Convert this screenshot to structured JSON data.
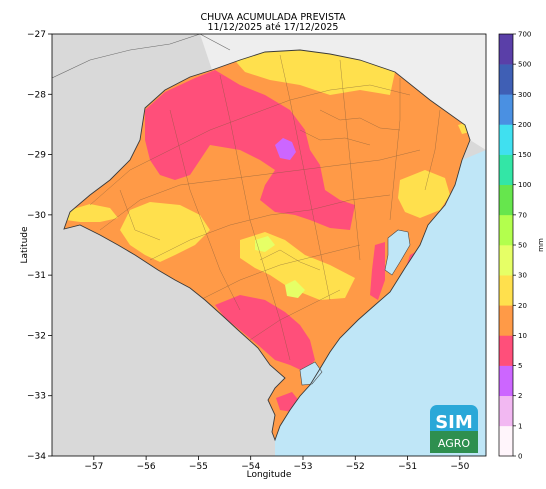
{
  "title_line1": "CHUVA ACUMULADA PREVISTA",
  "title_line2": "11/12/2025 até 17/12/2025",
  "map": {
    "xlabel": "Longitude",
    "ylabel": "Latitude",
    "x_ticks": [
      -57,
      -56,
      -55,
      -54,
      -53,
      -52,
      -51,
      -50
    ],
    "y_ticks": [
      -27,
      -28,
      -29,
      -30,
      -31,
      -32,
      -33,
      -34
    ],
    "lon_range": [
      -57.8,
      -49.5
    ],
    "lat_range": [
      -34,
      -27
    ],
    "colors": {
      "land_outside": "#d9d9d9",
      "land_inside_other": "#eeeeee",
      "ocean": "#bfe6f7",
      "border": "#4a4a4a"
    }
  },
  "legend": {
    "unit": "mm",
    "levels": [
      "0",
      "1",
      "2",
      "5",
      "10",
      "20",
      "30",
      "50",
      "70",
      "100",
      "150",
      "200",
      "300",
      "500",
      "700"
    ],
    "colors": [
      "#fff5fb",
      "#f2b8f2",
      "#cc66ff",
      "#ff4f7a",
      "#ff9a47",
      "#ffe04d",
      "#e6ff66",
      "#b3ff4d",
      "#66e64d",
      "#33e6a6",
      "#40e0f0",
      "#4a90e2",
      "#3f5fb5",
      "#5a3fa8"
    ]
  },
  "logo": {
    "top": "SIM",
    "bottom": "AGRO"
  }
}
